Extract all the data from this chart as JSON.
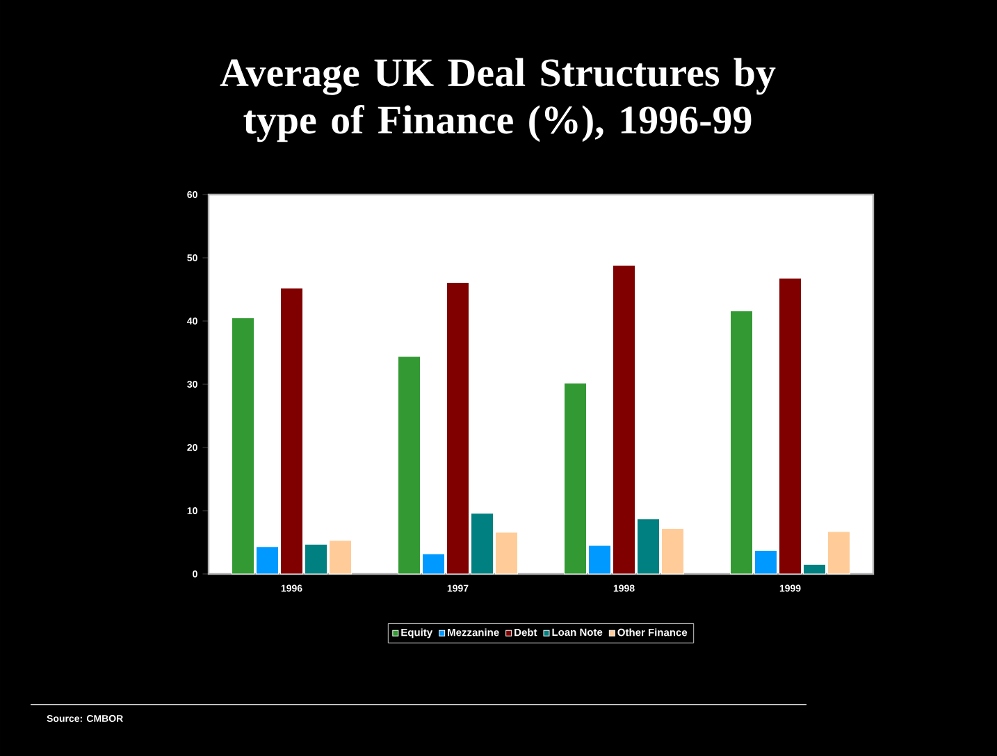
{
  "chart_data": {
    "type": "bar",
    "title": "Average UK Deal Structures by type of Finance (%), 1996-99",
    "categories": [
      "1996",
      "1997",
      "1998",
      "1999"
    ],
    "series": [
      {
        "name": "Equity",
        "color": "#339933",
        "values": [
          40.5,
          34.4,
          30.2,
          41.6
        ]
      },
      {
        "name": "Mezzanine",
        "color": "#0099ff",
        "values": [
          4.3,
          3.2,
          4.5,
          3.7
        ]
      },
      {
        "name": "Debt",
        "color": "#800000",
        "values": [
          45.2,
          46.1,
          48.8,
          46.8
        ]
      },
      {
        "name": "Loan Note",
        "color": "#008080",
        "values": [
          4.7,
          9.6,
          8.7,
          1.5
        ]
      },
      {
        "name": "Other Finance",
        "color": "#ffcc99",
        "values": [
          5.3,
          6.6,
          7.2,
          6.7
        ]
      }
    ],
    "ylim": [
      0,
      60
    ],
    "yticks": [
      0,
      10,
      20,
      30,
      40,
      50,
      60
    ],
    "legend": "bottom",
    "grid": false,
    "annotations": [
      "Source: CMBOR"
    ]
  }
}
